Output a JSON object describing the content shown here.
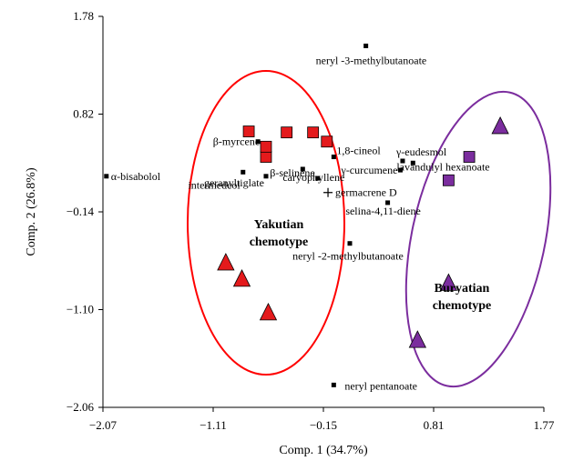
{
  "chart_data": {
    "type": "scatter",
    "xlabel": "Comp. 1 (34.7%)",
    "ylabel": "Comp. 2 (26.8%)",
    "xlim": [
      -2.07,
      1.77
    ],
    "ylim": [
      -2.06,
      1.78
    ],
    "xticks": [
      "−2.07",
      "−1.11",
      "−0.15",
      "0.81",
      "1.77"
    ],
    "yticks": [
      "1.78",
      "0.82",
      "−0.14",
      "−1.10",
      "−2.06"
    ],
    "colors": {
      "yakutian": "#e41a1c",
      "buryatian": "#7b2d9e",
      "ellipse_yakutian": "#ff0000",
      "ellipse_buryatian": "#7b2d9e"
    },
    "loadings": [
      {
        "label": "neryl -3-methylbutanoate",
        "x": 0.22,
        "y": 1.49
      },
      {
        "label": "α-bisabolol",
        "x": -2.04,
        "y": 0.21
      },
      {
        "label": "β-myrcene",
        "x": -0.72,
        "y": 0.55
      },
      {
        "label": "1,8-cineol",
        "x": -0.06,
        "y": 0.4
      },
      {
        "label": "caryophyllene",
        "x": -0.33,
        "y": 0.28
      },
      {
        "label": "intermedeol",
        "x": -0.85,
        "y": 0.25
      },
      {
        "label": "geranyltiglate",
        "x": -0.65,
        "y": 0.21
      },
      {
        "label": "β-selinene",
        "x": -0.2,
        "y": 0.19
      },
      {
        "label": "germacrene D",
        "x": -0.11,
        "y": 0.05,
        "marker": "plus"
      },
      {
        "label": "γ-eudesmol",
        "x": 0.54,
        "y": 0.36
      },
      {
        "label": "lavandulyl hexanoate",
        "x": 0.63,
        "y": 0.34
      },
      {
        "label": "γ-curcumene",
        "x": 0.52,
        "y": 0.27
      },
      {
        "label": "selina-4,11-diene",
        "x": 0.41,
        "y": -0.05
      },
      {
        "label": "neryl -2-methylbutanoate",
        "x": 0.08,
        "y": -0.45
      },
      {
        "label": "neryl pentanoate",
        "x": -0.06,
        "y": -1.84
      }
    ],
    "groups": [
      {
        "name": "Yakutian chemotype",
        "squares": [
          [
            -0.8,
            0.65
          ],
          [
            -0.47,
            0.64
          ],
          [
            -0.24,
            0.64
          ],
          [
            -0.12,
            0.55
          ],
          [
            -0.65,
            0.4
          ],
          [
            -0.65,
            0.5
          ]
        ],
        "triangles": [
          [
            -1.0,
            -0.64
          ],
          [
            -0.86,
            -0.8
          ],
          [
            -0.63,
            -1.13
          ]
        ]
      },
      {
        "name": "Buryatian chemotype",
        "squares": [
          [
            1.12,
            0.4
          ],
          [
            0.94,
            0.17
          ]
        ],
        "triangles": [
          [
            1.39,
            0.7
          ],
          [
            0.94,
            -0.84
          ],
          [
            0.67,
            -1.4
          ]
        ]
      }
    ]
  }
}
